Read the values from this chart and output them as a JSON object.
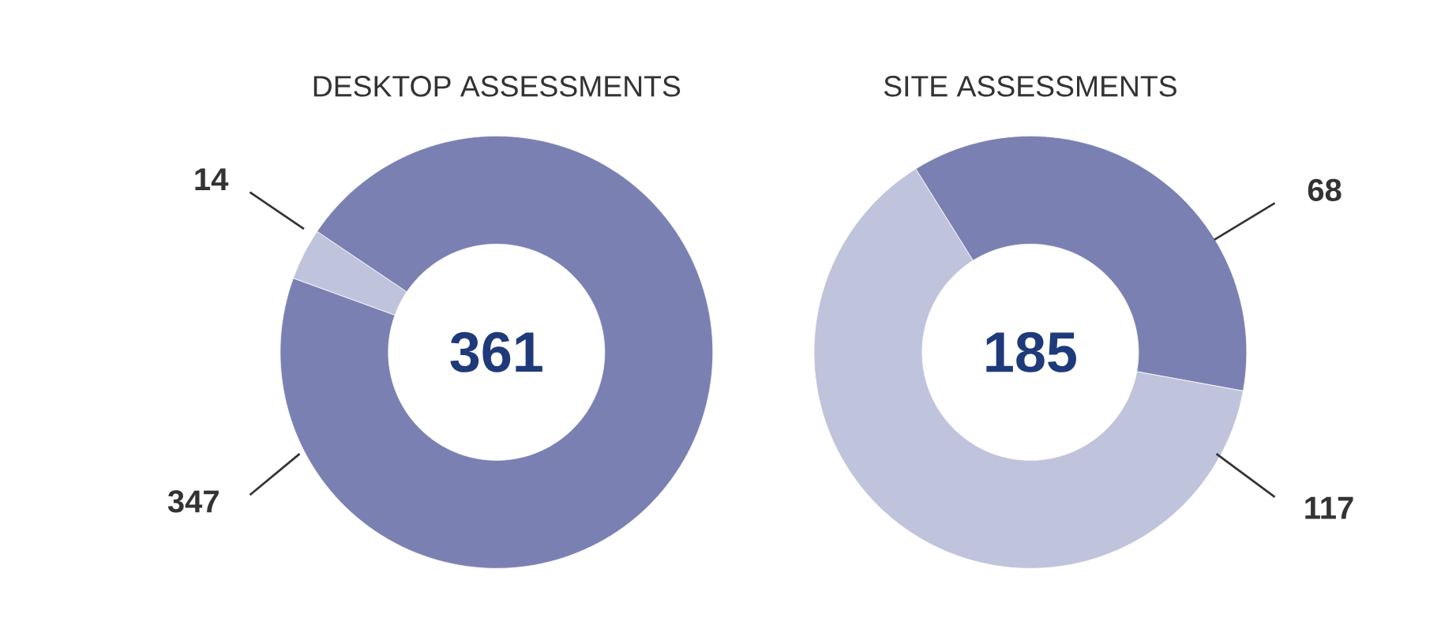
{
  "chart_data": [
    {
      "type": "donut",
      "title": "DESKTOP ASSESSMENTS",
      "categories": [
        null,
        null
      ],
      "values": [
        14,
        347
      ],
      "colors": [
        "#c0c3dc",
        "#7b80b3"
      ],
      "data_labels": true,
      "annotations": [
        "361"
      ]
    },
    {
      "type": "donut",
      "title": "SITE ASSESSMENTS",
      "categories": [
        null,
        null
      ],
      "values": [
        68,
        117
      ],
      "colors": [
        "#7b80b3",
        "#c0c3dc"
      ],
      "data_labels": true,
      "annotations": [
        "185"
      ]
    }
  ]
}
